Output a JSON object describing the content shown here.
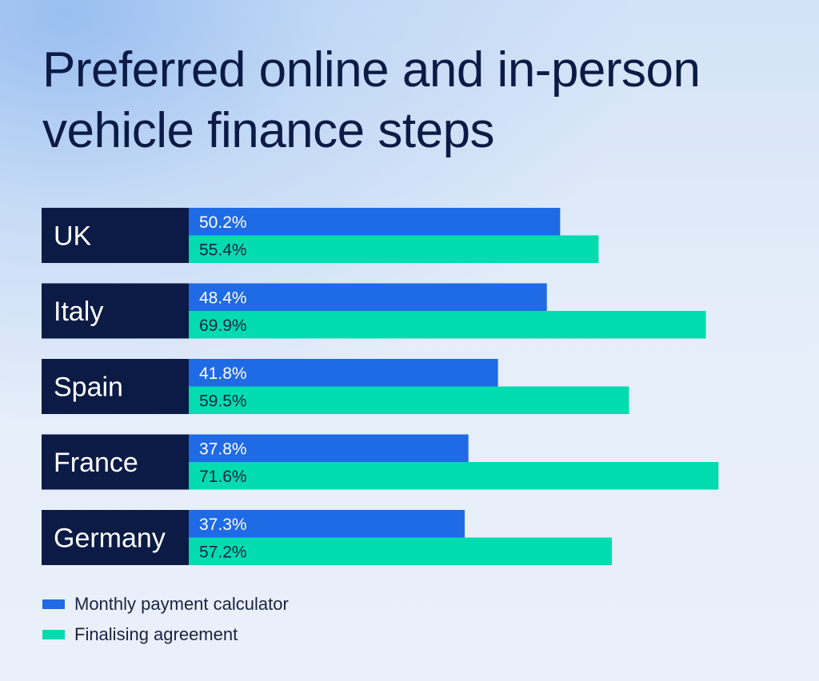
{
  "chart_data": {
    "type": "bar",
    "orientation": "horizontal",
    "title": "Preferred online and in-person vehicle finance steps",
    "categories": [
      "UK",
      "Italy",
      "Spain",
      "France",
      "Germany"
    ],
    "series": [
      {
        "name": "Monthly payment calculator",
        "color": "#1f6ae5",
        "values": [
          50.2,
          48.4,
          41.8,
          37.8,
          37.3
        ],
        "labels": [
          "50.2%",
          "48.4%",
          "41.8%",
          "37.8%",
          "37.3%"
        ]
      },
      {
        "name": "Finalising agreement",
        "color": "#00dcb0",
        "values": [
          55.4,
          69.9,
          59.5,
          71.6,
          57.2
        ],
        "labels": [
          "55.4%",
          "69.9%",
          "59.5%",
          "71.6%",
          "57.2%"
        ]
      }
    ],
    "xlim": [
      0,
      100
    ],
    "unit": "%",
    "grid": false,
    "legend": "bottom-left"
  },
  "colors": {
    "title": "#0b1b45",
    "category_box": "#0b1b45",
    "category_text": "#ffffff",
    "label_on_blue": "#ffffff",
    "label_on_green": "#1a2340"
  }
}
